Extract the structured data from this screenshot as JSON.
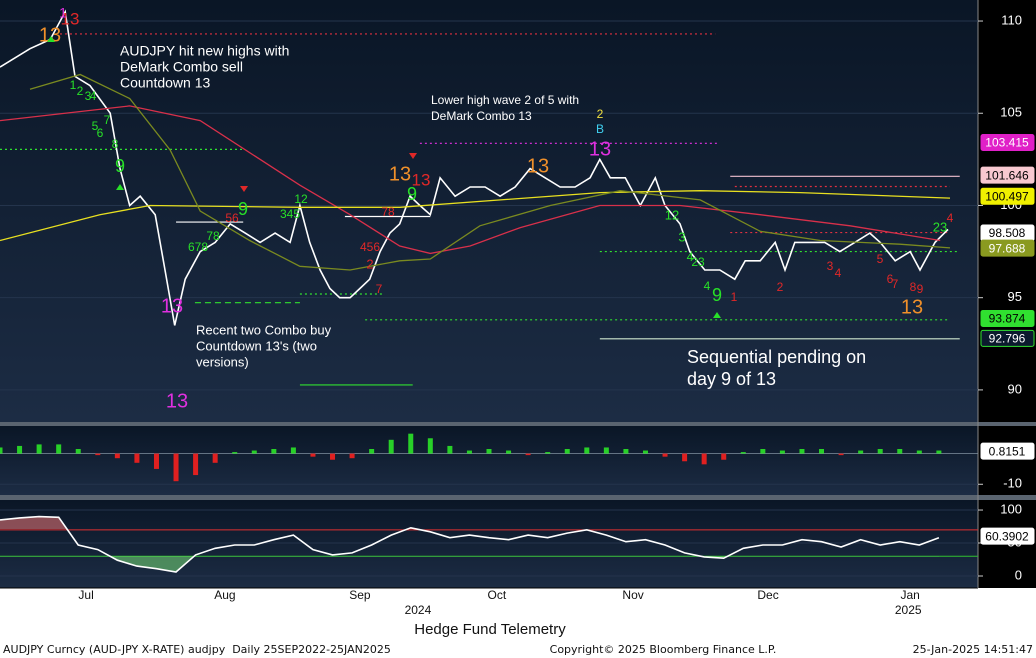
{
  "chart_data": [
    {
      "type": "line",
      "xlim": [
        0,
        150
      ],
      "ylim": [
        88.26,
        111.14
      ],
      "yticks": [
        90,
        95,
        100,
        105,
        110
      ],
      "grid": true,
      "xticks": [
        {
          "value": 13.2,
          "label": "Jul"
        },
        {
          "value": 34.5,
          "label": "Aug"
        },
        {
          "value": 55.2,
          "label": "Sep"
        },
        {
          "value": 76.2,
          "label": "Oct"
        },
        {
          "value": 97.1,
          "label": "Nov"
        },
        {
          "value": 117.8,
          "label": "Dec"
        },
        {
          "value": 139.6,
          "label": "Jan"
        }
      ],
      "year_ticks": [
        {
          "value": 64.1,
          "label": "2024"
        },
        {
          "value": 139.3,
          "label": "2025"
        }
      ],
      "series": [
        {
          "color": "#ffffff",
          "x": [
            0,
            4.6,
            7.7,
            10,
            11.5,
            13.8,
            16.9,
            18.4,
            19.9,
            21.5,
            23.8,
            25.3,
            26.8,
            28.4,
            30.7,
            33,
            35.3,
            37.6,
            39.9,
            42.2,
            44.5,
            46,
            47.5,
            49.1,
            50.6,
            52.1,
            53.7,
            55.2,
            56.7,
            58.3,
            59.8,
            61.3,
            62.9,
            64.4,
            66,
            67.5,
            69.8,
            72.1,
            74.4,
            76.7,
            79,
            81.3,
            83.6,
            85.9,
            88.2,
            90.5,
            92,
            93.6,
            95.9,
            98.2,
            100.5,
            102,
            104.3,
            105.8,
            108.1,
            110.4,
            112.7,
            114.3,
            116.6,
            118.9,
            120.4,
            121.9,
            124.2,
            126.5,
            128.8,
            131.1,
            133.4,
            135,
            137.3,
            139.6,
            141.1,
            143.4,
            145.4
          ],
          "values": [
            107.5,
            108.5,
            109,
            110.5,
            107,
            106.5,
            105,
            102,
            100,
            100.5,
            99.5,
            96.5,
            93.5,
            96,
            97.5,
            98,
            99,
            98.5,
            98,
            98.5,
            98,
            100,
            98,
            96.5,
            95.5,
            95,
            95,
            95.5,
            96,
            97.5,
            98.5,
            99,
            100.5,
            100,
            99.5,
            101.5,
            100.5,
            101,
            101,
            100.5,
            101,
            102,
            101.5,
            101,
            101,
            101.5,
            102.5,
            101.5,
            101.5,
            100,
            101.5,
            100,
            99,
            97.5,
            96.5,
            96.5,
            96,
            97,
            97,
            98,
            96.5,
            98,
            98,
            98,
            97.5,
            98,
            98.5,
            98,
            97,
            97.5,
            96.5,
            98,
            98.7
          ]
        },
        {
          "color": "#d8304a",
          "x": [
            0,
            19.9,
            30.7,
            46,
            53.7,
            61.3,
            66,
            72.1,
            79.8,
            92,
            104.3,
            116.6,
            130.4,
            144.2
          ],
          "values": [
            104.6,
            105.4,
            104.6,
            101.1,
            99.5,
            97.8,
            97.4,
            97.8,
            98.8,
            100,
            100,
            99.5,
            98.9,
            98.1
          ]
        },
        {
          "color": "#e8e020",
          "x": [
            0,
            15.3,
            23,
            46,
            61.3,
            92,
            107.4,
            122.7,
            145.7
          ],
          "values": [
            98.1,
            99.5,
            100,
            99.9,
            99.9,
            100.7,
            100.8,
            100.7,
            100.4
          ]
        },
        {
          "color": "#7a8a20",
          "x": [
            4.6,
            12.3,
            19.9,
            26.1,
            30.7,
            38.3,
            46,
            53.7,
            61.3,
            66,
            73.6,
            84.4,
            95.1,
            107.4,
            116.6,
            125.8,
            138,
            145.7
          ],
          "values": [
            106.3,
            107.1,
            105.8,
            103,
            99.7,
            98.1,
            96.7,
            96.5,
            97,
            97.1,
            98.9,
            100,
            100.8,
            100.3,
            98.6,
            98.1,
            97.9,
            97.7
          ]
        }
      ],
      "levels": [
        {
          "value": 109.3,
          "x": [
            9.2,
            109.7
          ],
          "color": "#e03040",
          "style": "dotted"
        },
        {
          "value": 103.37,
          "x": [
            64.4,
            110.1
          ],
          "color": "#e030e0",
          "style": "dotted"
        },
        {
          "value": 103.04,
          "x": [
            0,
            37.3
          ],
          "color": "#30e030",
          "style": "dotted"
        },
        {
          "value": 94.73,
          "x": [
            29.9,
            46
          ],
          "color": "#30e030",
          "style": "dashed"
        },
        {
          "value": 95.2,
          "x": [
            46,
            59
          ],
          "color": "#30e030",
          "style": "dotted"
        },
        {
          "value": 93.8,
          "x": [
            56,
            145.7
          ],
          "color": "#30e030",
          "style": "dotted"
        },
        {
          "value": 92.77,
          "x": [
            92,
            147.2
          ],
          "color": "#d0e8d0",
          "style": "solid"
        },
        {
          "value": 101.58,
          "x": [
            112,
            147.2
          ],
          "color": "#f0c0d0",
          "style": "solid"
        },
        {
          "value": 101.03,
          "x": [
            112.7,
            145.7
          ],
          "color": "#e03040",
          "style": "dotted"
        },
        {
          "value": 97.5,
          "x": [
            92,
            147.2
          ],
          "color": "#30e030",
          "style": "dotted"
        },
        {
          "value": 98.53,
          "x": [
            112,
            145.7
          ],
          "color": "#e03040",
          "style": "dotted"
        },
        {
          "value": 90.27,
          "x": [
            46,
            63.3
          ],
          "color": "#30e030",
          "style": "solid"
        },
        {
          "value": 99.4,
          "x": [
            52.9,
            66
          ],
          "color": "#ffffff",
          "style": "solid"
        },
        {
          "value": 99.1,
          "x": [
            27,
            37.3
          ],
          "color": "#ffffff",
          "style": "solid"
        }
      ],
      "price_labels": [
        {
          "value": 103.415,
          "color": "#e020c8",
          "text_color": "#ffffff"
        },
        {
          "value": 101.646,
          "color": "#f8c8d0",
          "text_color": "#000000"
        },
        {
          "value": 100.497,
          "color": "#f0f000",
          "text_color": "#000000"
        },
        {
          "value": 98.508,
          "color": "#ffffff",
          "text_color": "#000000"
        },
        {
          "value": 97.688,
          "color": "#8a9a20",
          "text_color": "#ffffff"
        },
        {
          "value": 93.874,
          "color": "#30e030",
          "text_color": "#000000"
        },
        {
          "value": 92.796,
          "color": "#0b1a2e",
          "text_color": "#ffffff"
        }
      ],
      "counts": [
        {
          "label": "13",
          "color": "#f0902a"
        },
        {
          "label": "13",
          "color": "#e02828"
        },
        {
          "label": "1",
          "color": "#e030e0"
        },
        {
          "label": "9",
          "color": "#28e028"
        },
        {
          "label": "13",
          "color": "#e030e0"
        },
        {
          "label": "13",
          "color": "#e030e0"
        },
        {
          "label": "9",
          "color": "#28e028"
        },
        {
          "label": "13",
          "color": "#f0902a"
        },
        {
          "label": "9",
          "color": "#28e028"
        },
        {
          "label": "13",
          "color": "#e02828"
        },
        {
          "label": "13",
          "color": "#f0902a"
        },
        {
          "label": "2",
          "color": "#f0e040"
        },
        {
          "label": "B",
          "color": "#40d0f0"
        },
        {
          "label": "13",
          "color": "#e030e0"
        },
        {
          "label": "9",
          "color": "#28e028"
        },
        {
          "label": "13",
          "color": "#f0902a"
        },
        {
          "label": "1",
          "color": "#e02828"
        },
        {
          "label": "2",
          "color": "#e02828"
        },
        {
          "label": "3",
          "color": "#e02828"
        },
        {
          "label": "4",
          "color": "#e02828"
        },
        {
          "label": "5",
          "color": "#e02828"
        },
        {
          "label": "6",
          "color": "#e02828"
        },
        {
          "label": "7",
          "color": "#e02828"
        },
        {
          "label": "8",
          "color": "#e02828"
        },
        {
          "label": "9",
          "color": "#e02828"
        },
        {
          "label": "1",
          "color": "#28e028"
        },
        {
          "label": "2",
          "color": "#28e028"
        },
        {
          "label": "3",
          "color": "#28e028"
        },
        {
          "label": "4",
          "color": "#28e028"
        },
        {
          "label": "5",
          "color": "#28e028"
        },
        {
          "label": "6",
          "color": "#28e028"
        },
        {
          "label": "7",
          "color": "#28e028"
        },
        {
          "label": "8",
          "color": "#28e028"
        },
        {
          "label": "12",
          "color": "#28e028"
        },
        {
          "label": "3",
          "color": "#28e028"
        },
        {
          "label": "4",
          "color": "#28e028"
        },
        {
          "label": "23",
          "color": "#28e028"
        },
        {
          "label": "4",
          "color": "#28e028"
        },
        {
          "label": "23",
          "color": "#28e028"
        },
        {
          "label": "4",
          "color": "#e02828"
        },
        {
          "label": "2",
          "color": "#e02828"
        },
        {
          "label": "12",
          "color": "#28e028"
        },
        {
          "label": "345",
          "color": "#28e028"
        },
        {
          "label": "678",
          "color": "#28e028"
        },
        {
          "label": "78",
          "color": "#28e028"
        },
        {
          "label": "56",
          "color": "#e02828"
        },
        {
          "label": "7",
          "color": "#e02828"
        },
        {
          "label": "456",
          "color": "#e02828"
        },
        {
          "label": "78",
          "color": "#e02828"
        }
      ],
      "annotations": [
        {
          "lines": [
            "AUDJPY hit new highs with",
            "DeMark Combo sell",
            "Countdown 13"
          ]
        },
        {
          "lines": [
            "Lower high wave 2 of 5 with",
            "DeMark Combo 13"
          ]
        },
        {
          "lines": [
            "Recent two Combo buy",
            "Countdown 13's (two",
            "versions)"
          ]
        },
        {
          "lines": [
            "Sequential pending on",
            "day 9 of 13"
          ]
        }
      ]
    },
    {
      "type": "bar",
      "ylim": [
        -13.5,
        9
      ],
      "yticks": [
        -10
      ],
      "pos_color": "#28d028",
      "neg_color": "#e02020",
      "x": [
        0,
        3,
        6,
        9,
        12,
        15,
        18,
        21,
        24,
        27,
        30,
        33,
        36,
        39,
        42,
        45,
        48,
        51,
        54,
        57,
        60,
        63,
        66,
        69,
        72,
        75,
        78,
        81,
        84,
        87,
        90,
        93,
        96,
        99,
        102,
        105,
        108,
        111,
        114,
        117,
        120,
        123,
        126,
        129,
        132,
        135,
        138,
        141,
        144
      ],
      "values": [
        2,
        2.5,
        3,
        3,
        1.5,
        -0.5,
        -1.5,
        -3,
        -5,
        -9,
        -7,
        -3,
        0.5,
        1,
        1.5,
        2,
        -1,
        -2,
        -1.5,
        1.5,
        4.5,
        6.5,
        5,
        2.5,
        1,
        1.5,
        1,
        -0.5,
        0.5,
        1.5,
        2,
        2,
        1.5,
        1,
        -1,
        -2.5,
        -3.5,
        -2,
        0.5,
        1.5,
        1,
        1.5,
        1.5,
        -0.5,
        1,
        1.5,
        1.5,
        1,
        1
      ],
      "last_label": {
        "value": 0.8151
      }
    },
    {
      "type": "line",
      "ylim": [
        -18.2,
        115.2
      ],
      "yticks": [
        0,
        50,
        100
      ],
      "bands": [
        {
          "value": 70,
          "color": "#e03030"
        },
        {
          "value": 30,
          "color": "#30c030"
        }
      ],
      "series": [
        {
          "color": "#ffffff",
          "x": [
            0,
            3,
            6,
            9,
            12,
            15,
            18,
            21,
            24,
            27,
            30,
            33,
            36,
            39,
            42,
            45,
            48,
            51,
            54,
            57,
            60,
            63,
            66,
            69,
            72,
            75,
            78,
            81,
            84,
            87,
            90,
            93,
            96,
            99,
            102,
            105,
            108,
            111,
            114,
            117,
            120,
            123,
            126,
            129,
            132,
            135,
            138,
            141,
            144
          ],
          "values": [
            85,
            88,
            90,
            89,
            47,
            40,
            24,
            15,
            11,
            6,
            32,
            42,
            47,
            47,
            55,
            62,
            40,
            32,
            35,
            47,
            62,
            73,
            67,
            58,
            62,
            58,
            55,
            62,
            58,
            65,
            70,
            62,
            52,
            55,
            47,
            35,
            29,
            27,
            42,
            47,
            47,
            55,
            52,
            44,
            55,
            47,
            52,
            47,
            58
          ]
        }
      ],
      "last_label": {
        "value": 60.3902
      }
    }
  ],
  "footer": {
    "title": "Hedge Fund Telemetry",
    "source": "AUDJPY Curncy (AUD-JPY X-RATE) audjpy  Daily 25SEP2022-25JAN2025",
    "copyright": "Copyright© 2025 Bloomberg Finance L.P.",
    "timestamp": "25-Jan-2025 14:51:47"
  }
}
